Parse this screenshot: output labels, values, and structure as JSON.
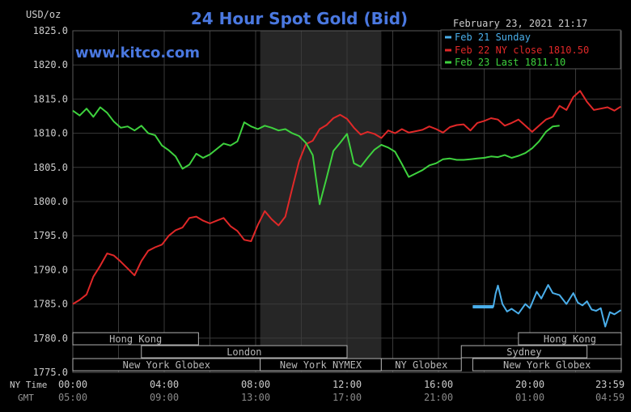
{
  "chart_data": {
    "type": "line",
    "title": "24 Hour Spot Gold (Bid)",
    "watermark": "www.kitco.com",
    "timestamp": "February 23, 2021 21:17",
    "ylabel": "USD/oz",
    "ylim": [
      1775,
      1825
    ],
    "yticks": [
      "1825.0",
      "1820.0",
      "1815.0",
      "1810.0",
      "1805.0",
      "1800.0",
      "1795.0",
      "1790.0",
      "1785.0",
      "1780.0",
      "1775.0"
    ],
    "x_range_hours": [
      0,
      24
    ],
    "xticks_ny": [
      "00:00",
      "04:00",
      "08:00",
      "12:00",
      "16:00",
      "20:00",
      "23:59"
    ],
    "xticks_gmt": [
      "05:00",
      "09:00",
      "13:00",
      "17:00",
      "21:00",
      "01:00",
      "04:59"
    ],
    "x_axis_row_labels": {
      "ny": "NY Time",
      "gmt": "GMT"
    },
    "highlight_band_hours": [
      8.2,
      13.5
    ],
    "colors": {
      "background": "#000000",
      "grid": "#3a3a3a",
      "text": "#cccccc",
      "title": "#4a78e0",
      "band": "#262626"
    },
    "series": [
      {
        "name": "Feb 21 Sunday",
        "legend": "Feb 21 Sunday",
        "color": "#4aaeea",
        "x": [
          17.5,
          18.4,
          18.5,
          18.6,
          18.8,
          19.0,
          19.2,
          19.5,
          19.8,
          20.0,
          20.3,
          20.5,
          20.8,
          21.0,
          21.3,
          21.6,
          21.9,
          22.1,
          22.3,
          22.5,
          22.7,
          22.9,
          23.1,
          23.3,
          23.5,
          23.7,
          23.98
        ],
        "values": [
          1784.6,
          1784.6,
          1786.5,
          1787.7,
          1785.0,
          1783.9,
          1784.3,
          1783.6,
          1785.0,
          1784.4,
          1786.8,
          1785.8,
          1787.8,
          1786.6,
          1786.3,
          1785.0,
          1786.6,
          1785.2,
          1784.8,
          1785.4,
          1784.2,
          1784.0,
          1784.4,
          1781.7,
          1783.8,
          1783.5,
          1784.1
        ]
      },
      {
        "name": "Feb 22 NY close 1810.50",
        "legend": "Feb 22 NY close 1810.50",
        "color": "#e02828",
        "x": [
          0.0,
          0.3,
          0.6,
          0.9,
          1.2,
          1.5,
          1.8,
          2.1,
          2.4,
          2.7,
          3.0,
          3.3,
          3.6,
          3.9,
          4.2,
          4.5,
          4.8,
          5.1,
          5.4,
          5.7,
          6.0,
          6.3,
          6.6,
          6.9,
          7.2,
          7.5,
          7.8,
          8.1,
          8.4,
          8.7,
          9.0,
          9.3,
          9.6,
          9.9,
          10.2,
          10.5,
          10.8,
          11.1,
          11.4,
          11.7,
          12.0,
          12.3,
          12.6,
          12.9,
          13.2,
          13.5,
          13.8,
          14.1,
          14.4,
          14.7,
          15.0,
          15.3,
          15.6,
          15.9,
          16.2,
          16.5,
          16.8,
          17.1,
          17.4,
          17.7,
          18.0,
          18.3,
          18.6,
          18.9,
          19.2,
          19.5,
          19.8,
          20.1,
          20.4,
          20.7,
          21.0,
          21.3,
          21.6,
          21.9,
          22.2,
          22.5,
          22.8,
          23.1,
          23.4,
          23.7,
          23.98
        ],
        "values": [
          1785.0,
          1785.6,
          1786.4,
          1789.0,
          1790.6,
          1792.4,
          1792.1,
          1791.2,
          1790.2,
          1789.2,
          1791.3,
          1792.8,
          1793.3,
          1793.7,
          1795.0,
          1795.8,
          1796.2,
          1797.6,
          1797.8,
          1797.2,
          1796.8,
          1797.2,
          1797.6,
          1796.4,
          1795.7,
          1794.4,
          1794.2,
          1796.6,
          1798.6,
          1797.4,
          1796.5,
          1797.8,
          1801.9,
          1805.9,
          1808.4,
          1808.9,
          1810.6,
          1811.2,
          1812.2,
          1812.7,
          1812.1,
          1810.8,
          1809.8,
          1810.2,
          1809.9,
          1809.3,
          1810.4,
          1810.0,
          1810.6,
          1810.1,
          1810.3,
          1810.5,
          1811.0,
          1810.6,
          1810.1,
          1810.9,
          1811.2,
          1811.3,
          1810.4,
          1811.5,
          1811.8,
          1812.2,
          1812.0,
          1811.1,
          1811.5,
          1812.0,
          1811.1,
          1810.2,
          1811.1,
          1812.0,
          1812.4,
          1814.0,
          1813.4,
          1815.3,
          1816.2,
          1814.6,
          1813.4,
          1813.6,
          1813.8,
          1813.3,
          1813.9
        ]
      },
      {
        "name": "Feb 23 Last 1811.10",
        "legend": "Feb 23 Last 1811.10",
        "color": "#3ed23e",
        "x": [
          0.0,
          0.3,
          0.6,
          0.9,
          1.2,
          1.5,
          1.8,
          2.1,
          2.4,
          2.7,
          3.0,
          3.3,
          3.6,
          3.9,
          4.2,
          4.5,
          4.8,
          5.1,
          5.4,
          5.7,
          6.0,
          6.3,
          6.6,
          6.9,
          7.2,
          7.5,
          7.8,
          8.1,
          8.4,
          8.7,
          9.0,
          9.3,
          9.6,
          9.9,
          10.2,
          10.5,
          10.8,
          11.1,
          11.4,
          11.7,
          12.0,
          12.3,
          12.6,
          12.9,
          13.2,
          13.5,
          13.8,
          14.1,
          14.4,
          14.7,
          15.0,
          15.3,
          15.6,
          15.9,
          16.2,
          16.5,
          16.8,
          17.1,
          17.4,
          17.7,
          18.0,
          18.3,
          18.6,
          18.9,
          19.2,
          19.5,
          19.8,
          20.1,
          20.4,
          20.7,
          21.0,
          21.3
        ],
        "values": [
          1813.3,
          1812.6,
          1813.6,
          1812.4,
          1813.8,
          1813.0,
          1811.7,
          1810.8,
          1811.0,
          1810.4,
          1811.1,
          1810.0,
          1809.7,
          1808.2,
          1807.5,
          1806.6,
          1804.8,
          1805.4,
          1807.0,
          1806.4,
          1806.9,
          1807.7,
          1808.5,
          1808.2,
          1808.8,
          1811.6,
          1811.0,
          1810.6,
          1811.1,
          1810.8,
          1810.4,
          1810.6,
          1810.0,
          1809.6,
          1808.6,
          1806.8,
          1799.6,
          1803.4,
          1807.4,
          1808.6,
          1809.9,
          1805.6,
          1805.1,
          1806.4,
          1807.6,
          1808.3,
          1807.9,
          1807.3,
          1805.5,
          1803.6,
          1804.1,
          1804.6,
          1805.3,
          1805.6,
          1806.2,
          1806.3,
          1806.1,
          1806.1,
          1806.2,
          1806.3,
          1806.4,
          1806.6,
          1806.5,
          1806.8,
          1806.4,
          1806.7,
          1807.1,
          1807.8,
          1808.8,
          1810.2,
          1811.0,
          1811.1
        ]
      }
    ],
    "sessions": [
      {
        "label": "Hong Kong",
        "start": 0,
        "end": 5.5,
        "row": 1
      },
      {
        "label": "London",
        "start": 3,
        "end": 12,
        "row": 2
      },
      {
        "label": "New York Globex",
        "start": 0,
        "end": 8.2,
        "row": 3
      },
      {
        "label": "New York NYMEX",
        "start": 8.2,
        "end": 13.5,
        "row": 3
      },
      {
        "label": "NY Globex",
        "start": 13.5,
        "end": 17,
        "row": 3
      },
      {
        "label": "Hong Kong",
        "start": 19.5,
        "end": 24,
        "row": 1
      },
      {
        "label": "Sydney",
        "start": 17,
        "end": 22.5,
        "row": 2
      },
      {
        "label": "New York Globex",
        "start": 17.5,
        "end": 24,
        "row": 3
      }
    ]
  }
}
